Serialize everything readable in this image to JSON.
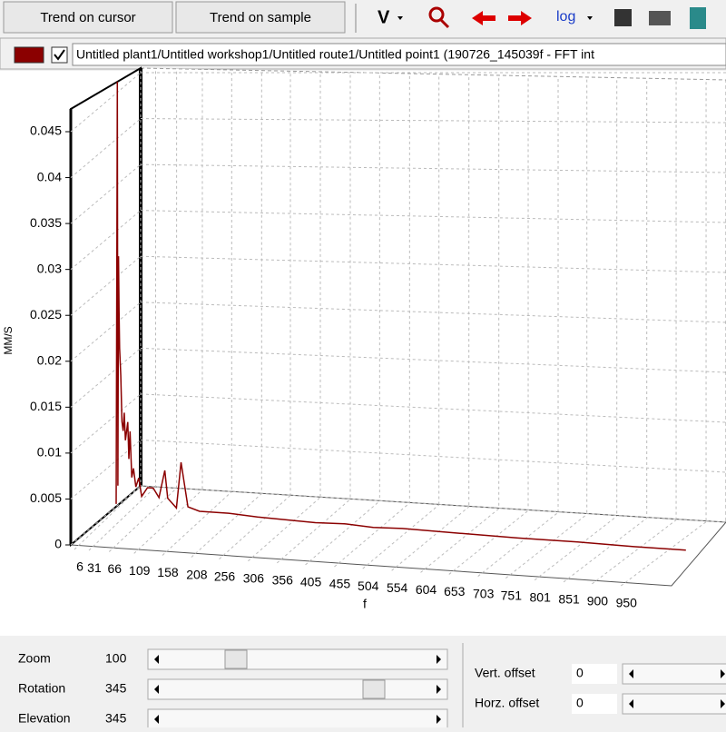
{
  "toolbar": {
    "buttons": [
      "Trend on cursor",
      "Trend on sample"
    ],
    "units_menu": "V",
    "scale_menu": "log"
  },
  "path_bar": {
    "text": "Untitled plant1/Untitled workshop1/Untitled route1/Untitled point1 (190726_145039f - FFT int"
  },
  "chart_data": {
    "type": "line3d",
    "ylabel": "MM/S",
    "xlabel": "f",
    "x": [
      6,
      8,
      9,
      10,
      11,
      12,
      14,
      16,
      18,
      20,
      22,
      24,
      26,
      28,
      30,
      33,
      36,
      40,
      45,
      50,
      60,
      70,
      80,
      90,
      95,
      110,
      118,
      130,
      150,
      200,
      250,
      300,
      350,
      400,
      450,
      500,
      600,
      700,
      800,
      900,
      990
    ],
    "series": [
      {
        "color": "#8b0000",
        "values": [
          0.001,
          0.047,
          0.003,
          0.028,
          0.022,
          0.018,
          0.015,
          0.01,
          0.009,
          0.011,
          0.008,
          0.009,
          0.01,
          0.006,
          0.009,
          0.004,
          0.005,
          0.003,
          0.004,
          0.002,
          0.003,
          0.003,
          0.002,
          0.005,
          0.002,
          0.001,
          0.006,
          0.0012,
          0.0008,
          0.0008,
          0.0006,
          0.0005,
          0.0004,
          0.0005,
          0.0003,
          0.0004,
          0.0003,
          0.0002,
          0.0002,
          0.0001,
          0.0001
        ]
      }
    ],
    "xlim": [
      6,
      990
    ],
    "ylim": [
      0,
      0.045
    ],
    "xticks": [
      6,
      31,
      66,
      109,
      158,
      208,
      256,
      306,
      356,
      405,
      455,
      504,
      554,
      604,
      653,
      703,
      751,
      801,
      851,
      900,
      950
    ],
    "yticks": [
      0,
      0.005,
      0.01,
      0.015,
      0.02,
      0.025,
      0.03,
      0.035,
      0.04,
      0.045
    ],
    "grid": true
  },
  "controls": {
    "left": [
      {
        "label": "Zoom",
        "value": 100
      },
      {
        "label": "Rotation",
        "value": 345
      },
      {
        "label": "Elevation",
        "value": 345
      }
    ],
    "right": [
      {
        "label": "Vert. offset",
        "value": 0
      },
      {
        "label": "Horz. offset",
        "value": 0
      }
    ]
  }
}
